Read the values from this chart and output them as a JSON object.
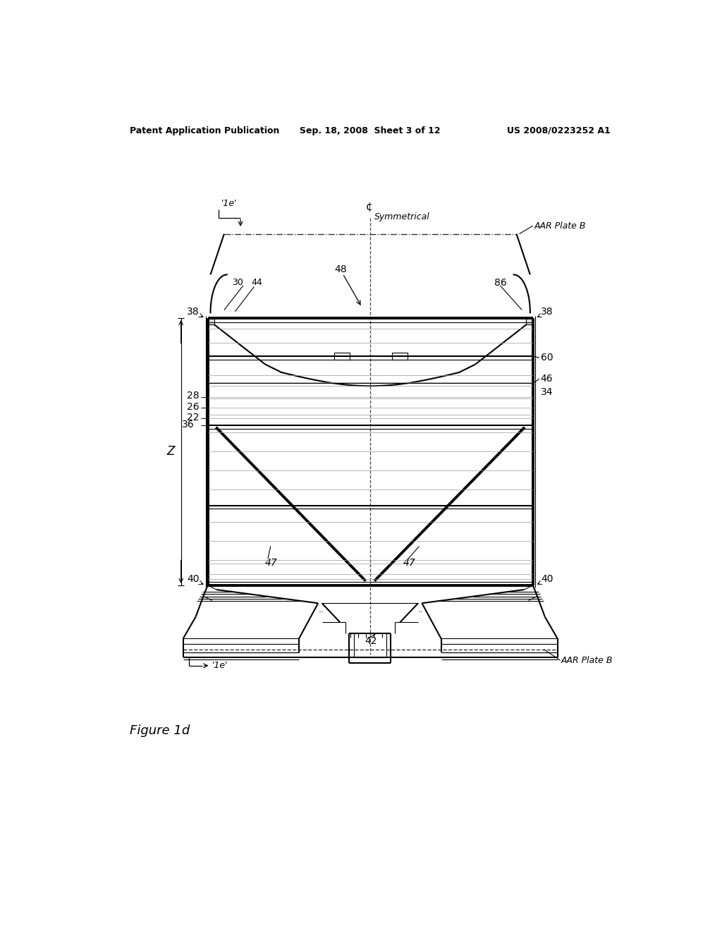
{
  "page_title_left": "Patent Application Publication",
  "page_title_mid": "Sep. 18, 2008  Sheet 3 of 12",
  "page_title_right": "US 2008/0223252 A1",
  "figure_label": "Figure 1d",
  "bg_color": "#ffffff",
  "line_color": "#000000",
  "labels": {
    "AAR_Plate_B_top": "AAR Plate B",
    "AAR_Plate_B_bot": "AAR Plate B",
    "symmetrical": "Symmetrical",
    "centerline_sym": "¢",
    "1e_top": "'1e'",
    "1e_bot": "'1e'",
    "38_left": "38",
    "38_right": "38",
    "30": "30",
    "44": "44",
    "48": "48",
    "86": "86",
    "60": "60",
    "46": "46",
    "34": "34",
    "28": "28",
    "26": "26",
    "22": "22",
    "Z": "Z",
    "36": "36",
    "47_left": "47",
    "47_right": "47",
    "40_left": "40",
    "40_right": "40",
    "42": "42"
  }
}
